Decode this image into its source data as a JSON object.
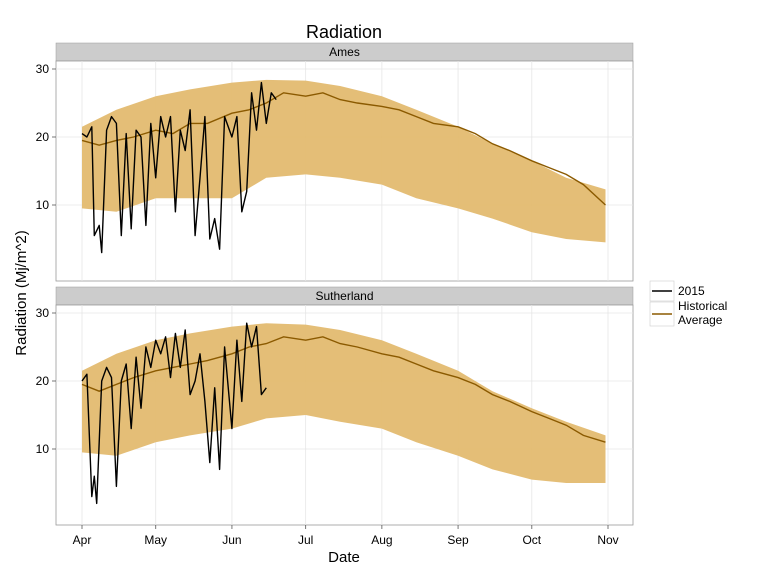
{
  "chart_data": {
    "type": "line",
    "title": "Radiation",
    "xlabel": "Date",
    "ylabel": "Radiation (Mj/m^2)",
    "x_range": [
      "2015-04-01",
      "2015-10-31"
    ],
    "ylim": [
      0,
      30
    ],
    "x_ticks": [
      {
        "date": "2015-04-01",
        "label": "Apr"
      },
      {
        "date": "2015-05-01",
        "label": "May"
      },
      {
        "date": "2015-06-01",
        "label": "Jun"
      },
      {
        "date": "2015-07-01",
        "label": "Jul"
      },
      {
        "date": "2015-08-01",
        "label": "Aug"
      },
      {
        "date": "2015-09-01",
        "label": "Sep"
      },
      {
        "date": "2015-10-01",
        "label": "Oct"
      },
      {
        "date": "2015-11-01",
        "label": "Nov"
      }
    ],
    "y_ticks": [
      10,
      20,
      30
    ],
    "grid": true,
    "legend": {
      "placement": "right",
      "entries": [
        {
          "label": "2015",
          "color": "#000000"
        },
        {
          "label": "Historical Average",
          "lines": [
            "Historical",
            "Average"
          ],
          "color": "#8B5A00"
        }
      ]
    },
    "colors": {
      "band": "#E3BB70",
      "average": "#8B5A00",
      "current": "#000000"
    },
    "panels": [
      {
        "strip": "Ames",
        "band": {
          "upper": [
            [
              "2015-04-01",
              21.5
            ],
            [
              "2015-04-15",
              24
            ],
            [
              "2015-05-01",
              26
            ],
            [
              "2015-05-15",
              27
            ],
            [
              "2015-06-01",
              28
            ],
            [
              "2015-06-15",
              28.4
            ],
            [
              "2015-07-01",
              28.3
            ],
            [
              "2015-07-15",
              27.5
            ],
            [
              "2015-08-01",
              26
            ],
            [
              "2015-08-15",
              24
            ],
            [
              "2015-09-01",
              21.5
            ],
            [
              "2015-09-15",
              19
            ],
            [
              "2015-10-01",
              16.5
            ],
            [
              "2015-10-15",
              14
            ],
            [
              "2015-10-31",
              12.3
            ]
          ],
          "lower": [
            [
              "2015-04-01",
              9.5
            ],
            [
              "2015-04-15",
              9
            ],
            [
              "2015-05-01",
              11
            ],
            [
              "2015-05-15",
              11
            ],
            [
              "2015-06-01",
              11
            ],
            [
              "2015-06-15",
              14
            ],
            [
              "2015-07-01",
              14.5
            ],
            [
              "2015-07-15",
              14
            ],
            [
              "2015-08-01",
              13
            ],
            [
              "2015-08-15",
              11
            ],
            [
              "2015-09-01",
              9.5
            ],
            [
              "2015-09-15",
              8
            ],
            [
              "2015-10-01",
              6
            ],
            [
              "2015-10-15",
              5
            ],
            [
              "2015-10-31",
              4.5
            ]
          ]
        },
        "historical_average": [
          [
            "2015-04-01",
            19.5
          ],
          [
            "2015-04-08",
            18.8
          ],
          [
            "2015-04-15",
            19.5
          ],
          [
            "2015-04-22",
            20
          ],
          [
            "2015-05-01",
            21
          ],
          [
            "2015-05-08",
            20.5
          ],
          [
            "2015-05-15",
            22
          ],
          [
            "2015-05-22",
            22
          ],
          [
            "2015-06-01",
            23.5
          ],
          [
            "2015-06-08",
            24
          ],
          [
            "2015-06-15",
            25
          ],
          [
            "2015-06-22",
            26.5
          ],
          [
            "2015-07-01",
            26
          ],
          [
            "2015-07-08",
            26.5
          ],
          [
            "2015-07-15",
            25.5
          ],
          [
            "2015-07-22",
            25
          ],
          [
            "2015-08-01",
            24.5
          ],
          [
            "2015-08-08",
            24
          ],
          [
            "2015-08-15",
            23
          ],
          [
            "2015-08-22",
            22
          ],
          [
            "2015-09-01",
            21.5
          ],
          [
            "2015-09-08",
            20.5
          ],
          [
            "2015-09-15",
            19
          ],
          [
            "2015-09-22",
            18
          ],
          [
            "2015-10-01",
            16.5
          ],
          [
            "2015-10-08",
            15.5
          ],
          [
            "2015-10-15",
            14.5
          ],
          [
            "2015-10-22",
            13
          ],
          [
            "2015-10-31",
            10
          ]
        ],
        "current_2015": [
          [
            "2015-04-01",
            20.5
          ],
          [
            "2015-04-03",
            20
          ],
          [
            "2015-04-05",
            21.5
          ],
          [
            "2015-04-06",
            5.5
          ],
          [
            "2015-04-08",
            7
          ],
          [
            "2015-04-09",
            3
          ],
          [
            "2015-04-11",
            21
          ],
          [
            "2015-04-13",
            23
          ],
          [
            "2015-04-15",
            22
          ],
          [
            "2015-04-17",
            5.5
          ],
          [
            "2015-04-19",
            20.5
          ],
          [
            "2015-04-21",
            6.5
          ],
          [
            "2015-04-23",
            21
          ],
          [
            "2015-04-25",
            20
          ],
          [
            "2015-04-27",
            7
          ],
          [
            "2015-04-29",
            22
          ],
          [
            "2015-05-01",
            14
          ],
          [
            "2015-05-03",
            23
          ],
          [
            "2015-05-05",
            20
          ],
          [
            "2015-05-07",
            23
          ],
          [
            "2015-05-09",
            9
          ],
          [
            "2015-05-11",
            21
          ],
          [
            "2015-05-13",
            18
          ],
          [
            "2015-05-15",
            24
          ],
          [
            "2015-05-17",
            5.5
          ],
          [
            "2015-05-19",
            14
          ],
          [
            "2015-05-21",
            23
          ],
          [
            "2015-05-23",
            5
          ],
          [
            "2015-05-25",
            8
          ],
          [
            "2015-05-27",
            3.5
          ],
          [
            "2015-05-29",
            23
          ],
          [
            "2015-06-01",
            20
          ],
          [
            "2015-06-03",
            23
          ],
          [
            "2015-06-05",
            9
          ],
          [
            "2015-06-07",
            12
          ],
          [
            "2015-06-09",
            26.5
          ],
          [
            "2015-06-11",
            21
          ],
          [
            "2015-06-13",
            28
          ],
          [
            "2015-06-15",
            22
          ],
          [
            "2015-06-17",
            26.5
          ],
          [
            "2015-06-19",
            25.5
          ]
        ]
      },
      {
        "strip": "Sutherland",
        "band": {
          "upper": [
            [
              "2015-04-01",
              21.5
            ],
            [
              "2015-04-15",
              24
            ],
            [
              "2015-05-01",
              26
            ],
            [
              "2015-05-15",
              27
            ],
            [
              "2015-06-01",
              28
            ],
            [
              "2015-06-15",
              28.5
            ],
            [
              "2015-07-01",
              28.3
            ],
            [
              "2015-07-15",
              27.5
            ],
            [
              "2015-08-01",
              26
            ],
            [
              "2015-08-15",
              24
            ],
            [
              "2015-09-01",
              21.5
            ],
            [
              "2015-09-15",
              18.5
            ],
            [
              "2015-10-01",
              16
            ],
            [
              "2015-10-15",
              14
            ],
            [
              "2015-10-31",
              12
            ]
          ],
          "lower": [
            [
              "2015-04-01",
              9.5
            ],
            [
              "2015-04-15",
              9
            ],
            [
              "2015-05-01",
              11
            ],
            [
              "2015-05-15",
              12
            ],
            [
              "2015-06-01",
              13
            ],
            [
              "2015-06-15",
              14.5
            ],
            [
              "2015-07-01",
              15
            ],
            [
              "2015-07-15",
              14
            ],
            [
              "2015-08-01",
              13
            ],
            [
              "2015-08-15",
              11
            ],
            [
              "2015-09-01",
              9
            ],
            [
              "2015-09-15",
              7
            ],
            [
              "2015-10-01",
              5.5
            ],
            [
              "2015-10-15",
              5
            ],
            [
              "2015-10-31",
              5
            ]
          ]
        },
        "historical_average": [
          [
            "2015-04-01",
            19.5
          ],
          [
            "2015-04-08",
            18.5
          ],
          [
            "2015-04-15",
            19.5
          ],
          [
            "2015-04-22",
            20.5
          ],
          [
            "2015-05-01",
            21.5
          ],
          [
            "2015-05-08",
            22
          ],
          [
            "2015-05-15",
            22.5
          ],
          [
            "2015-05-22",
            23
          ],
          [
            "2015-06-01",
            24
          ],
          [
            "2015-06-08",
            25
          ],
          [
            "2015-06-15",
            25.5
          ],
          [
            "2015-06-22",
            26.5
          ],
          [
            "2015-07-01",
            26
          ],
          [
            "2015-07-08",
            26.5
          ],
          [
            "2015-07-15",
            25.5
          ],
          [
            "2015-07-22",
            25
          ],
          [
            "2015-08-01",
            24
          ],
          [
            "2015-08-08",
            23.5
          ],
          [
            "2015-08-15",
            22.5
          ],
          [
            "2015-08-22",
            21.5
          ],
          [
            "2015-09-01",
            20.5
          ],
          [
            "2015-09-08",
            19.5
          ],
          [
            "2015-09-15",
            18
          ],
          [
            "2015-09-22",
            17
          ],
          [
            "2015-10-01",
            15.5
          ],
          [
            "2015-10-08",
            14.5
          ],
          [
            "2015-10-15",
            13.5
          ],
          [
            "2015-10-22",
            12
          ],
          [
            "2015-10-31",
            11
          ]
        ],
        "current_2015": [
          [
            "2015-04-01",
            20
          ],
          [
            "2015-04-03",
            21
          ],
          [
            "2015-04-05",
            3
          ],
          [
            "2015-04-06",
            6
          ],
          [
            "2015-04-07",
            2
          ],
          [
            "2015-04-09",
            20
          ],
          [
            "2015-04-11",
            22
          ],
          [
            "2015-04-13",
            20.5
          ],
          [
            "2015-04-15",
            4.5
          ],
          [
            "2015-04-17",
            20
          ],
          [
            "2015-04-19",
            22.5
          ],
          [
            "2015-04-21",
            13
          ],
          [
            "2015-04-23",
            23.5
          ],
          [
            "2015-04-25",
            16
          ],
          [
            "2015-04-27",
            25
          ],
          [
            "2015-04-29",
            22
          ],
          [
            "2015-05-01",
            26
          ],
          [
            "2015-05-03",
            24
          ],
          [
            "2015-05-05",
            26.5
          ],
          [
            "2015-05-07",
            20.5
          ],
          [
            "2015-05-09",
            27
          ],
          [
            "2015-05-11",
            22
          ],
          [
            "2015-05-13",
            27.5
          ],
          [
            "2015-05-15",
            18
          ],
          [
            "2015-05-17",
            20
          ],
          [
            "2015-05-19",
            24
          ],
          [
            "2015-05-21",
            17
          ],
          [
            "2015-05-23",
            8
          ],
          [
            "2015-05-25",
            19
          ],
          [
            "2015-05-27",
            7
          ],
          [
            "2015-05-29",
            25
          ],
          [
            "2015-06-01",
            13
          ],
          [
            "2015-06-03",
            26
          ],
          [
            "2015-06-05",
            17
          ],
          [
            "2015-06-07",
            28.5
          ],
          [
            "2015-06-09",
            25
          ],
          [
            "2015-06-11",
            28
          ],
          [
            "2015-06-13",
            18
          ],
          [
            "2015-06-15",
            19
          ]
        ]
      }
    ]
  }
}
